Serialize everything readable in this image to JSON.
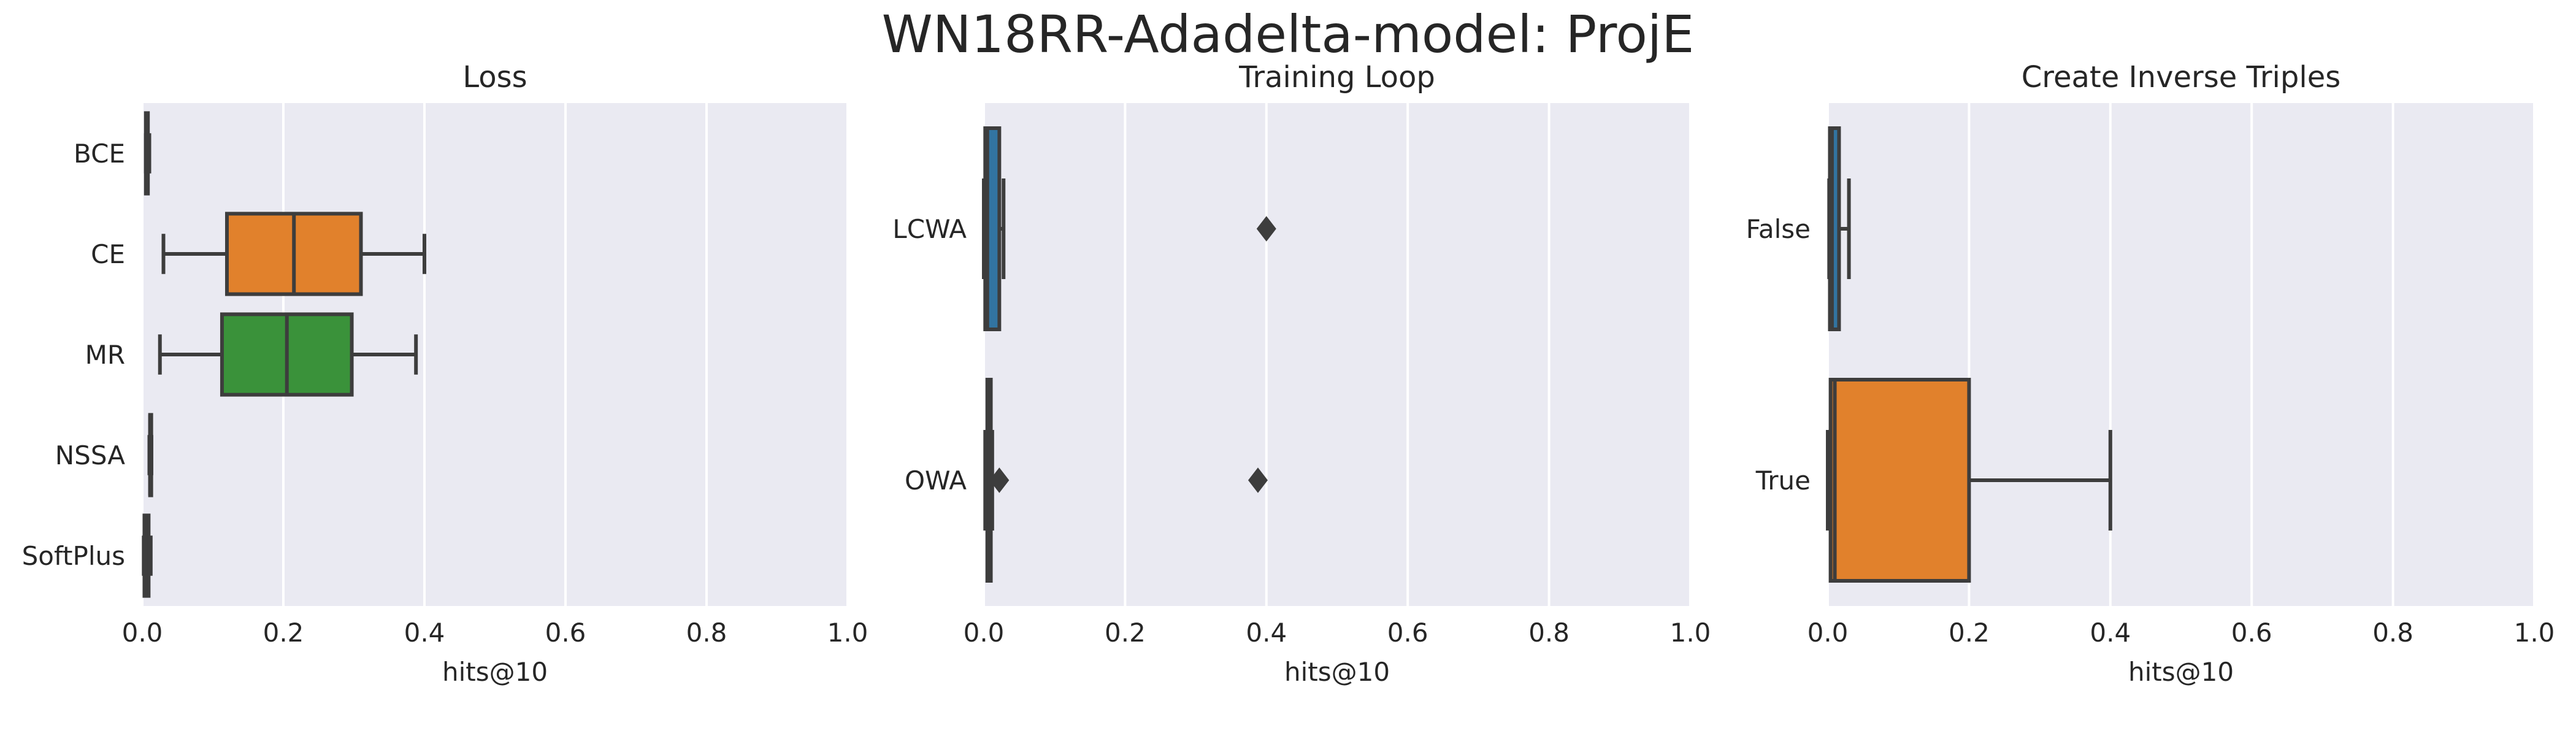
{
  "figure": {
    "title": "WN18RR-Adadelta-model: ProjE"
  },
  "chart_data": [
    {
      "type": "box",
      "orientation": "horizontal",
      "title": "Loss",
      "xlabel": "hits@10",
      "ylabel": "",
      "xlim": [
        0,
        1
      ],
      "xticks": [
        "0.0",
        "0.2",
        "0.4",
        "0.6",
        "0.8",
        "1.0"
      ],
      "grid": true,
      "categories": [
        "BCE",
        "CE",
        "MR",
        "NSSA",
        "SoftPlus"
      ],
      "boxes": [
        {
          "category": "BCE",
          "color": "#3274a1",
          "whislo": 0.005,
          "q1": 0.005,
          "median": 0.006,
          "q3": 0.008,
          "whishi": 0.01,
          "fliers": []
        },
        {
          "category": "CE",
          "color": "#e1812c",
          "whislo": 0.03,
          "q1": 0.12,
          "median": 0.215,
          "q3": 0.31,
          "whishi": 0.4,
          "fliers": []
        },
        {
          "category": "MR",
          "color": "#3a923a",
          "whislo": 0.025,
          "q1": 0.113,
          "median": 0.205,
          "q3": 0.297,
          "whishi": 0.388,
          "fliers": []
        },
        {
          "category": "NSSA",
          "color": "#c03d3e",
          "whislo": 0.01,
          "q1": 0.011,
          "median": 0.011,
          "q3": 0.012,
          "whishi": 0.013,
          "fliers": []
        },
        {
          "category": "SoftPlus",
          "color": "#9372b2",
          "whislo": 0.002,
          "q1": 0.003,
          "median": 0.005,
          "q3": 0.009,
          "whishi": 0.012,
          "fliers": []
        }
      ]
    },
    {
      "type": "box",
      "orientation": "horizontal",
      "title": "Training Loop",
      "xlabel": "hits@10",
      "ylabel": "",
      "xlim": [
        0,
        1
      ],
      "xticks": [
        "0.0",
        "0.2",
        "0.4",
        "0.6",
        "0.8",
        "1.0"
      ],
      "grid": true,
      "categories": [
        "LCWA",
        "OWA"
      ],
      "boxes": [
        {
          "category": "LCWA",
          "color": "#3274a1",
          "whislo": 0.0,
          "q1": 0.002,
          "median": 0.005,
          "q3": 0.022,
          "whishi": 0.028,
          "fliers": [
            0.4
          ]
        },
        {
          "category": "OWA",
          "color": "#e1812c",
          "whislo": 0.002,
          "q1": 0.005,
          "median": 0.007,
          "q3": 0.01,
          "whishi": 0.012,
          "fliers": [
            0.022,
            0.388
          ]
        }
      ]
    },
    {
      "type": "box",
      "orientation": "horizontal",
      "title": "Create Inverse Triples",
      "xlabel": "hits@10",
      "ylabel": "",
      "xlim": [
        0,
        1
      ],
      "xticks": [
        "0.0",
        "0.2",
        "0.4",
        "0.6",
        "0.8",
        "1.0"
      ],
      "grid": true,
      "categories": [
        "False",
        "True"
      ],
      "boxes": [
        {
          "category": "False",
          "color": "#3274a1",
          "whislo": 0.002,
          "q1": 0.003,
          "median": 0.006,
          "q3": 0.016,
          "whishi": 0.03,
          "fliers": []
        },
        {
          "category": "True",
          "color": "#e1812c",
          "whislo": 0.0,
          "q1": 0.004,
          "median": 0.01,
          "q3": 0.2,
          "whishi": 0.4,
          "fliers": []
        }
      ]
    }
  ]
}
